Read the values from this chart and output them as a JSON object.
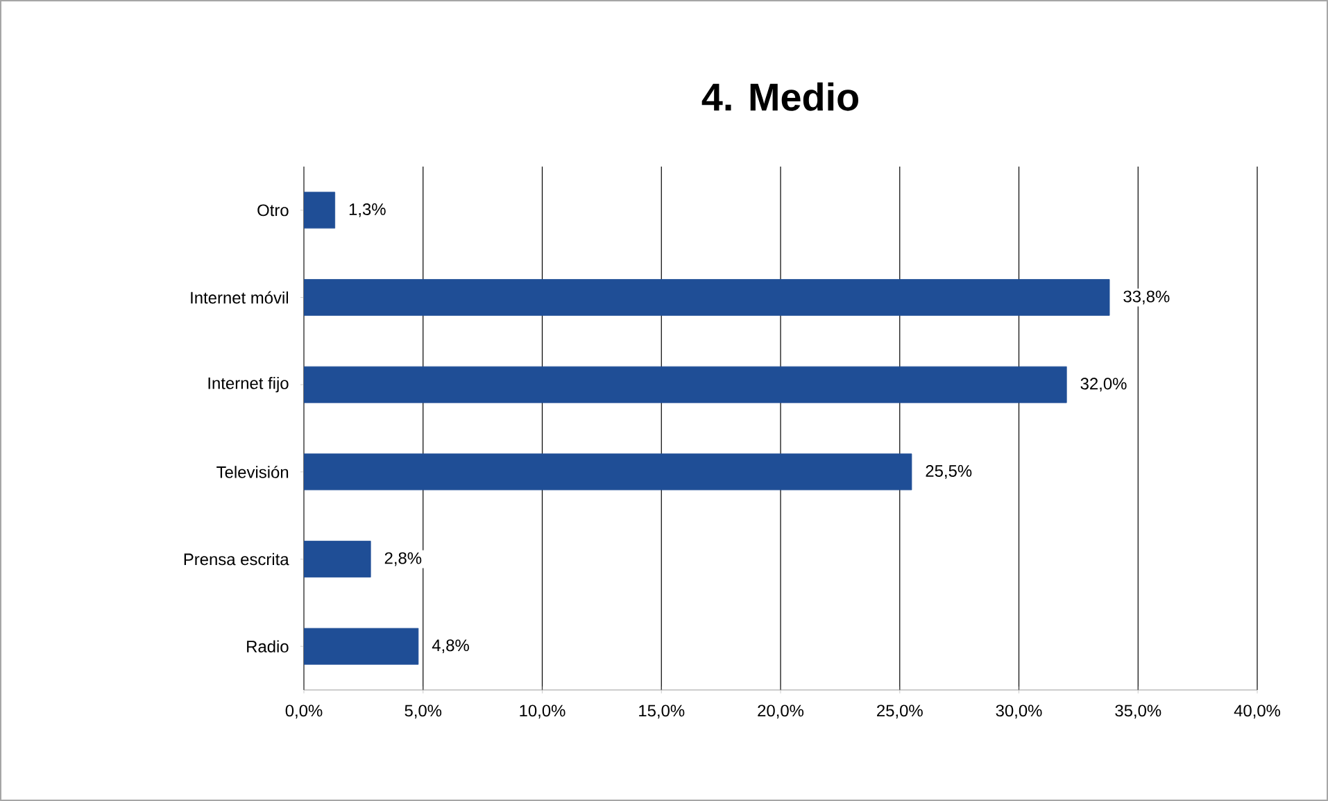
{
  "chart_data": {
    "type": "bar",
    "orientation": "horizontal",
    "title": "4. Medio",
    "categories": [
      "Otro",
      "Internet móvil",
      "Internet fijo",
      "Televisión",
      "Prensa escrita",
      "Radio"
    ],
    "values": [
      1.3,
      33.8,
      32.0,
      25.5,
      2.8,
      4.8
    ],
    "value_labels": [
      "1,3%",
      "33,8%",
      "32,0%",
      "25,5%",
      "2,8%",
      "4,8%"
    ],
    "color": "#1f4e96",
    "xlim": [
      0,
      40
    ],
    "xticks": [
      {
        "value": 0,
        "label": "0,0%"
      },
      {
        "value": 5,
        "label": "5,0%"
      },
      {
        "value": 10,
        "label": "10,0%"
      },
      {
        "value": 15,
        "label": "15,0%"
      },
      {
        "value": 20,
        "label": "20,0%"
      },
      {
        "value": 25,
        "label": "25,0%"
      },
      {
        "value": 30,
        "label": "30,0%"
      },
      {
        "value": 35,
        "label": "35,0%"
      },
      {
        "value": 40,
        "label": "40,0%"
      }
    ],
    "grid": "x"
  }
}
